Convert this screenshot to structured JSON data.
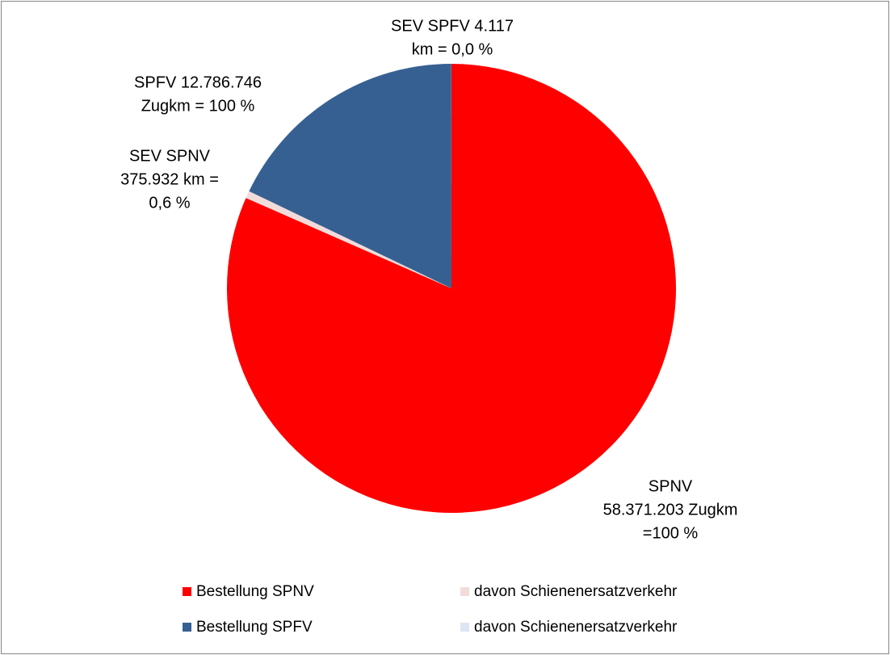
{
  "chart_data": {
    "type": "pie",
    "categories": [
      "Bestellung SPNV",
      "davon Schienenersatzverkehr",
      "Bestellung SPFV",
      "davon Schienenersatzverkehr"
    ],
    "values": [
      58371203,
      375932,
      12786746,
      4117
    ],
    "colors": [
      "#ff0000",
      "#f2dcdb",
      "#376092",
      "#dce6f2"
    ],
    "value_labels": [
      [
        "SPNV",
        "58.371.203 Zugkm",
        "=100 %"
      ],
      [
        "SEV SPNV",
        "375.932 km =",
        "0,6 %"
      ],
      [
        "SPFV 12.786.746",
        "Zugkm = 100 %"
      ],
      [
        "SEV SPFV 4.117",
        "km = 0,0 %"
      ]
    ],
    "legend": "bottom"
  }
}
